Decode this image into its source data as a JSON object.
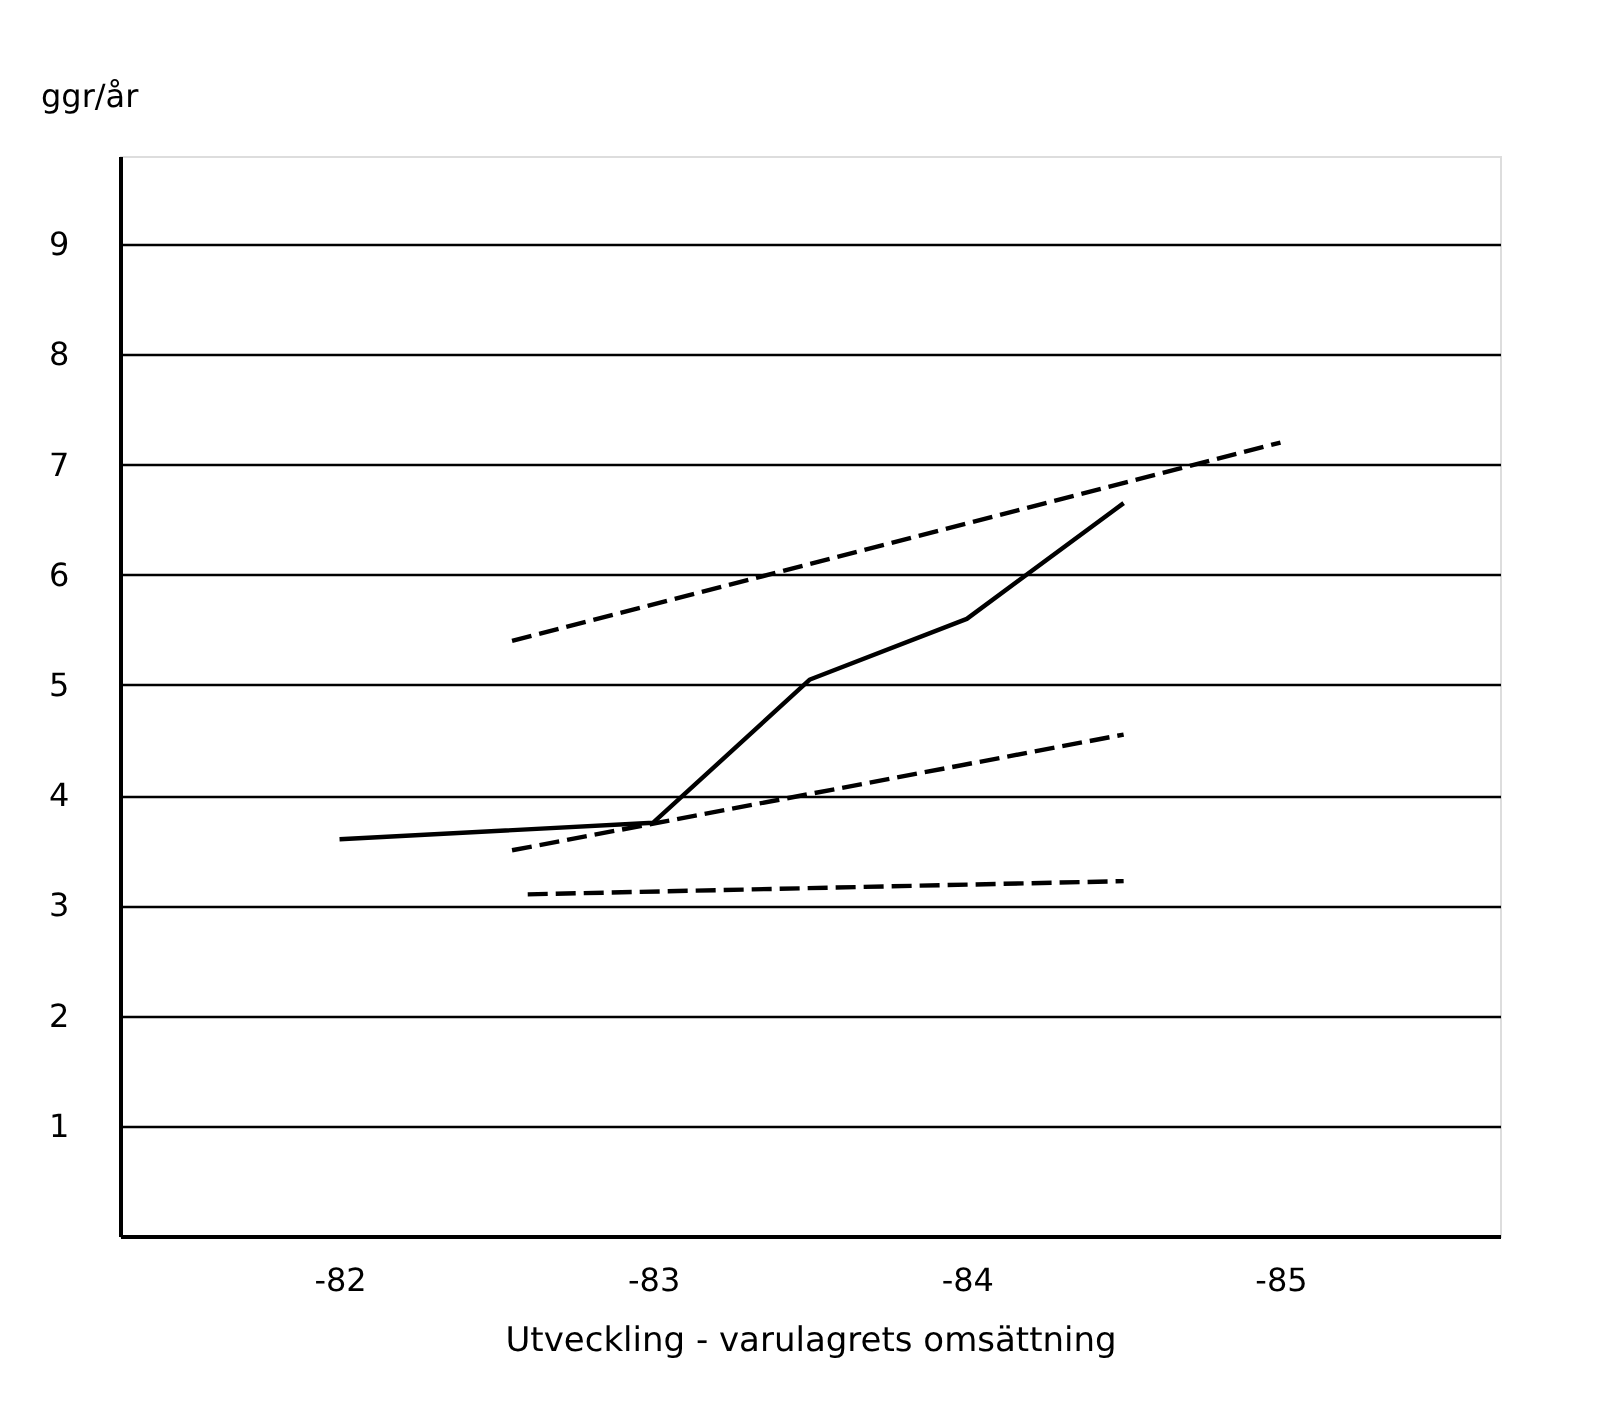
{
  "chart_data": {
    "type": "line",
    "xlabel": "Utveckling - varulagrets omsättning",
    "ylabel": "ggr/år",
    "xlim": [
      -81.3,
      -85.7
    ],
    "xticks": [
      -82,
      -83,
      -84,
      -85
    ],
    "ylim": [
      0,
      9.8
    ],
    "yticks": [
      1,
      2,
      3,
      4,
      5,
      6,
      7,
      8,
      9
    ],
    "grid": "y",
    "legend": false,
    "marker": "none",
    "series": [
      {
        "color": "#000000",
        "line_style": "solid",
        "x": [
          -82,
          -83,
          -83.5,
          -84,
          -84.5
        ],
        "values": [
          3.6,
          3.75,
          5.05,
          5.6,
          6.65
        ]
      },
      {
        "color": "#000000",
        "line_style": "dashed",
        "x": [
          -82.55,
          -85
        ],
        "values": [
          5.4,
          7.2
        ]
      },
      {
        "color": "#000000",
        "line_style": "dashed",
        "x": [
          -82.55,
          -84.5
        ],
        "values": [
          3.5,
          4.55
        ]
      },
      {
        "color": "#000000",
        "line_style": "dashed",
        "x": [
          -82.6,
          -84.5
        ],
        "values": [
          3.1,
          3.22
        ]
      }
    ]
  }
}
